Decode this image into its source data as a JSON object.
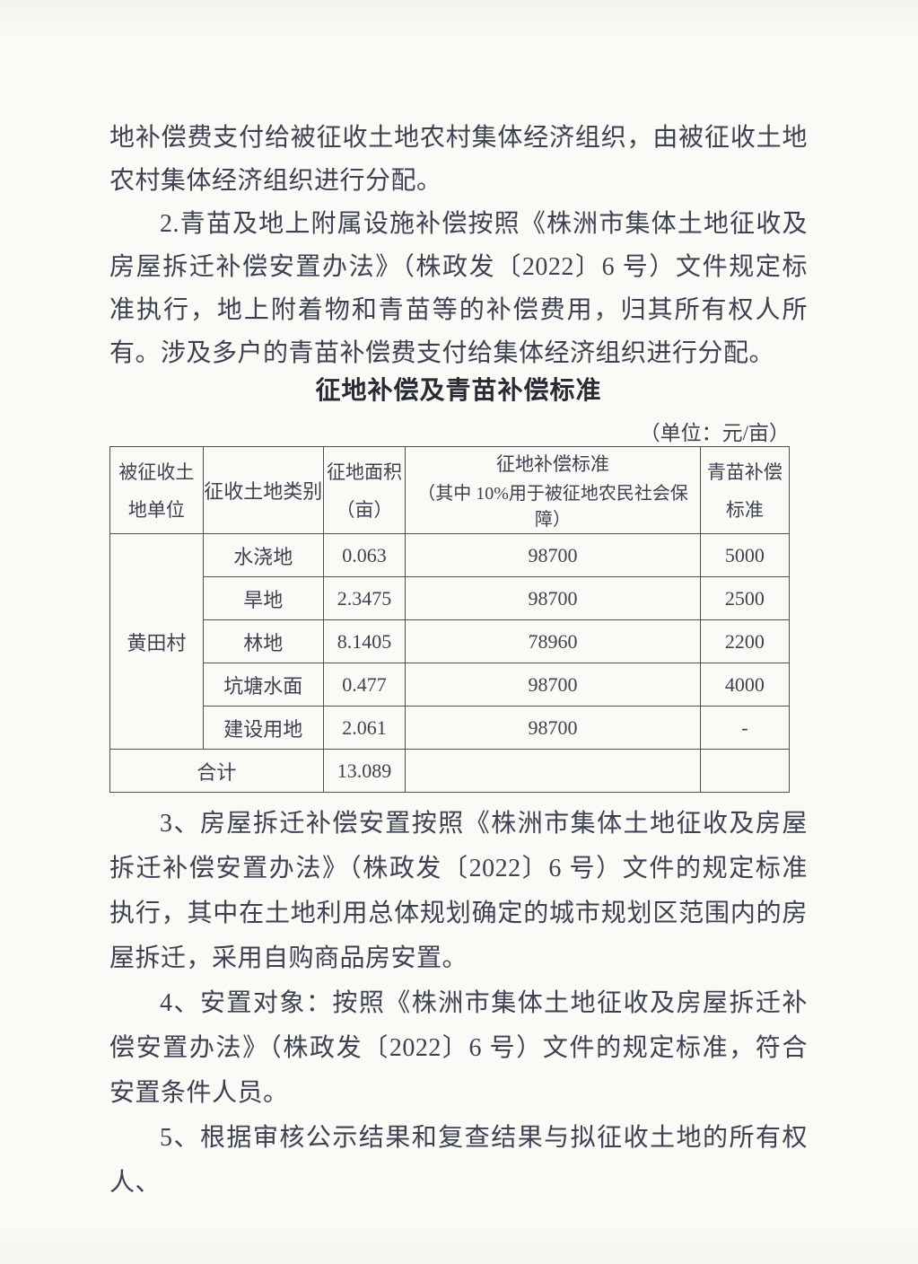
{
  "page": {
    "background": "#fbfaf6",
    "ink_color": "#3c4252",
    "border_color": "#4e4e4e"
  },
  "paragraphs": {
    "p1": "地补偿费支付给被征收土地农村集体经济组织，由被征收土地农村集体经济组织进行分配。",
    "p2": "2.青苗及地上附属设施补偿按照《株洲市集体土地征收及房屋拆迁补偿安置办法》（株政发〔2022〕6 号）文件规定标准执行，地上附着物和青苗等的补偿费用，归其所有权人所有。涉及多户的青苗补偿费支付给集体经济组织进行分配。",
    "p3": "3、房屋拆迁补偿安置按照《株洲市集体土地征收及房屋拆迁补偿安置办法》（株政发〔2022〕6 号）文件的规定标准执行，其中在土地利用总体规划确定的城市规划区范围内的房屋拆迁，采用自购商品房安置。",
    "p4": "4、安置对象：按照《株洲市集体土地征收及房屋拆迁补偿安置办法》（株政发〔2022〕6 号）文件的规定标准，符合安置条件人员。",
    "p5": "5、根据审核公示结果和复查结果与拟征收土地的所有权人、"
  },
  "table": {
    "title": "征地补偿及青苗补偿标准",
    "unit_note": "（单位：元/亩）",
    "headers": {
      "land_unit": [
        "被征收土",
        "地单位"
      ],
      "land_type": "征收土地类别",
      "area": [
        "征地面积",
        "（亩）"
      ],
      "compensation": [
        "征地补偿标准",
        "（其中 10%用于被征地农民社会保障）"
      ],
      "seedling": [
        "青苗补偿",
        "标准"
      ]
    },
    "village": "黄田村",
    "rows": [
      {
        "type": "水浇地",
        "area": "0.063",
        "compensation": "98700",
        "seedling": "5000"
      },
      {
        "type": "旱地",
        "area": "2.3475",
        "compensation": "98700",
        "seedling": "2500"
      },
      {
        "type": "林地",
        "area": "8.1405",
        "compensation": "78960",
        "seedling": "2200"
      },
      {
        "type": "坑塘水面",
        "area": "0.477",
        "compensation": "98700",
        "seedling": "4000"
      },
      {
        "type": "建设用地",
        "area": "2.061",
        "compensation": "98700",
        "seedling": "-"
      }
    ],
    "total": {
      "label": "合计",
      "area": "13.089",
      "compensation": "",
      "seedling": ""
    }
  }
}
